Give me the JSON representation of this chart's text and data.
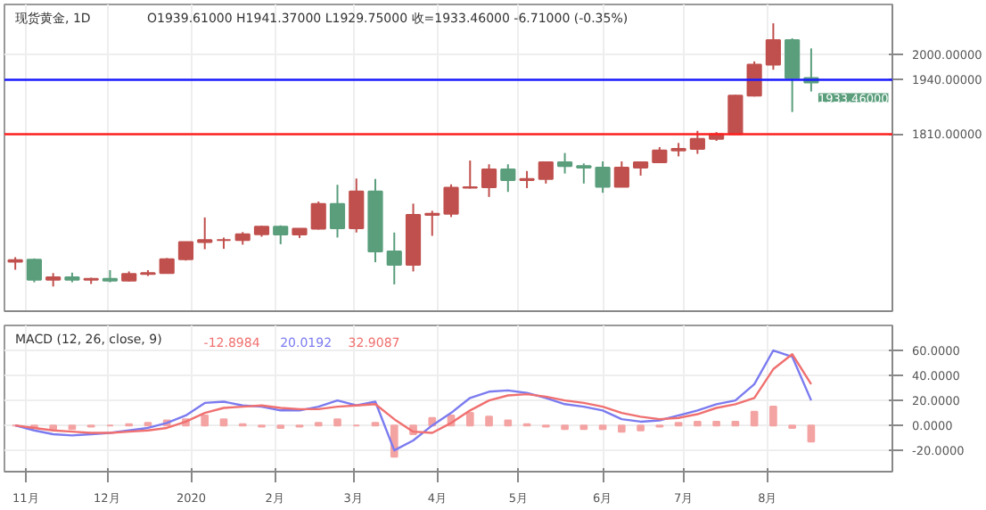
{
  "chart_data": [
    {
      "type": "candlestick",
      "title": "现货黄金, 1D",
      "subtitle": "O1939.61000 H1941.37000 L1929.75000 收=1933.46000 -6.71000 (-0.35%)",
      "x": [
        "2019-10-28",
        "2019-11-04",
        "2019-11-11",
        "2019-11-18",
        "2019-11-25",
        "2019-12-02",
        "2019-12-09",
        "2019-12-16",
        "2019-12-23",
        "2019-12-30",
        "2020-01-06",
        "2020-01-13",
        "2020-01-20",
        "2020-01-27",
        "2020-02-03",
        "2020-02-10",
        "2020-02-17",
        "2020-02-24",
        "2020-03-02",
        "2020-03-09",
        "2020-03-16",
        "2020-03-23",
        "2020-03-30",
        "2020-04-06",
        "2020-04-13",
        "2020-04-20",
        "2020-04-27",
        "2020-05-04",
        "2020-05-11",
        "2020-05-18",
        "2020-05-25",
        "2020-06-01",
        "2020-06-08",
        "2020-06-15",
        "2020-06-22",
        "2020-06-29",
        "2020-07-06",
        "2020-07-13",
        "2020-07-20",
        "2020-07-27",
        "2020-08-03",
        "2020-08-10",
        "2020-08-17"
      ],
      "ohlc": [
        [
          1505,
          1516,
          1486,
          1509
        ],
        [
          1510,
          1513,
          1456,
          1462
        ],
        [
          1462,
          1478,
          1446,
          1468
        ],
        [
          1468,
          1479,
          1456,
          1462
        ],
        [
          1462,
          1467,
          1452,
          1464
        ],
        [
          1464,
          1485,
          1456,
          1460
        ],
        [
          1460,
          1482,
          1458,
          1476
        ],
        [
          1476,
          1485,
          1471,
          1478
        ],
        [
          1478,
          1514,
          1477,
          1511
        ],
        [
          1511,
          1553,
          1508,
          1552
        ],
        [
          1552,
          1611,
          1535,
          1557
        ],
        [
          1557,
          1563,
          1536,
          1557
        ],
        [
          1557,
          1576,
          1546,
          1571
        ],
        [
          1571,
          1591,
          1565,
          1589
        ],
        [
          1589,
          1592,
          1547,
          1570
        ],
        [
          1570,
          1585,
          1562,
          1584
        ],
        [
          1584,
          1649,
          1582,
          1643
        ],
        [
          1643,
          1689,
          1563,
          1585
        ],
        [
          1585,
          1704,
          1575,
          1673
        ],
        [
          1673,
          1703,
          1504,
          1530
        ],
        [
          1530,
          1575,
          1451,
          1498
        ],
        [
          1498,
          1644,
          1482,
          1617
        ],
        [
          1617,
          1627,
          1567,
          1620
        ],
        [
          1620,
          1690,
          1612,
          1682
        ],
        [
          1682,
          1747,
          1680,
          1683
        ],
        [
          1683,
          1738,
          1660,
          1726
        ],
        [
          1726,
          1738,
          1672,
          1700
        ],
        [
          1700,
          1722,
          1681,
          1703
        ],
        [
          1703,
          1745,
          1692,
          1743
        ],
        [
          1743,
          1765,
          1716,
          1734
        ],
        [
          1734,
          1740,
          1692,
          1730
        ],
        [
          1730,
          1745,
          1670,
          1684
        ],
        [
          1684,
          1745,
          1684,
          1730
        ],
        [
          1730,
          1745,
          1711,
          1743
        ],
        [
          1743,
          1779,
          1741,
          1771
        ],
        [
          1771,
          1789,
          1757,
          1775
        ],
        [
          1775,
          1818,
          1763,
          1799
        ],
        [
          1799,
          1815,
          1794,
          1810
        ],
        [
          1810,
          1904,
          1810,
          1902
        ],
        [
          1902,
          1984,
          1900,
          1976
        ],
        [
          1976,
          2075,
          1964,
          2035
        ],
        [
          2035,
          2039,
          1863,
          1944
        ],
        [
          1944,
          2015,
          1912,
          1933.46
        ]
      ],
      "colors": [
        "#c0504d",
        "#5a9e7c",
        "#c0504d",
        "#5a9e7c",
        "#c0504d",
        "#5a9e7c",
        "#c0504d",
        "#c0504d",
        "#c0504d",
        "#c0504d",
        "#c0504d",
        "#c0504d",
        "#c0504d",
        "#c0504d",
        "#5a9e7c",
        "#c0504d",
        "#c0504d",
        "#5a9e7c",
        "#c0504d",
        "#5a9e7c",
        "#5a9e7c",
        "#c0504d",
        "#c0504d",
        "#c0504d",
        "#c0504d",
        "#c0504d",
        "#5a9e7c",
        "#c0504d",
        "#c0504d",
        "#5a9e7c",
        "#5a9e7c",
        "#5a9e7c",
        "#c0504d",
        "#c0504d",
        "#c0504d",
        "#c0504d",
        "#c0504d",
        "#c0504d",
        "#c0504d",
        "#c0504d",
        "#c0504d",
        "#5a9e7c",
        "#5a9e7c"
      ],
      "xlim": [
        "2019-10-24",
        "2020-09-16"
      ],
      "ylim": [
        1387,
        2120
      ],
      "xticks": [
        {
          "value": "2019-11-01",
          "label": null
        },
        {
          "value": "2019-12-01",
          "label": null
        },
        {
          "value": "2020-01-01",
          "label": null
        },
        {
          "value": "2020-02-01",
          "label": null
        },
        {
          "value": "2020-03-01",
          "label": null
        },
        {
          "value": "2020-04-01",
          "label": null
        },
        {
          "value": "2020-05-01",
          "label": null
        },
        {
          "value": "2020-06-01",
          "label": null
        },
        {
          "value": "2020-07-01",
          "label": null
        },
        {
          "value": "2020-08-01",
          "label": null
        }
      ],
      "yticks": [
        {
          "value": 1810,
          "label": "1810.00000"
        },
        {
          "value": 1940,
          "label": "1940.00000"
        },
        {
          "value": 2000,
          "label": "2000.00000"
        }
      ],
      "ref_lines": [
        {
          "axis": "y",
          "value": 1940,
          "color": "#1a1aff"
        },
        {
          "axis": "y",
          "value": 1810,
          "color": "#ff2020"
        }
      ],
      "annotations": [
        {
          "text": "1933.46000",
          "x": "2020-08-17",
          "y": 1933.46
        }
      ],
      "tick_labels": "y",
      "grid": true
    },
    {
      "type": "line",
      "title": "MACD (12, 26, close, 9)",
      "annotations": [
        "-12.8984",
        "20.0192",
        "32.9087"
      ],
      "x": [
        "2019-10-28",
        "2019-11-04",
        "2019-11-11",
        "2019-11-18",
        "2019-11-25",
        "2019-12-02",
        "2019-12-09",
        "2019-12-16",
        "2019-12-23",
        "2019-12-30",
        "2020-01-06",
        "2020-01-13",
        "2020-01-20",
        "2020-01-27",
        "2020-02-03",
        "2020-02-10",
        "2020-02-17",
        "2020-02-24",
        "2020-03-02",
        "2020-03-09",
        "2020-03-16",
        "2020-03-23",
        "2020-03-30",
        "2020-04-06",
        "2020-04-13",
        "2020-04-20",
        "2020-04-27",
        "2020-05-04",
        "2020-05-11",
        "2020-05-18",
        "2020-05-25",
        "2020-06-01",
        "2020-06-08",
        "2020-06-15",
        "2020-06-22",
        "2020-06-29",
        "2020-07-06",
        "2020-07-13",
        "2020-07-20",
        "2020-07-27",
        "2020-08-03",
        "2020-08-10",
        "2020-08-17"
      ],
      "series": [
        {
          "type": "bar",
          "color": "#f4a3a3",
          "values": [
            0,
            -2,
            -3,
            -3,
            -1,
            0,
            1,
            2,
            4,
            5,
            8,
            5,
            1,
            -1,
            -2,
            -1,
            2,
            5,
            0,
            2,
            -25,
            -7,
            6,
            8,
            10,
            7,
            4,
            1,
            -1,
            -3,
            -3,
            -3,
            -5,
            -4,
            -1,
            2,
            3,
            3,
            3,
            11,
            15,
            -2,
            -13
          ]
        },
        {
          "type": "line",
          "color": "#7b7bf0",
          "values": [
            0,
            -4,
            -7,
            -8,
            -7,
            -6,
            -4,
            -2,
            2,
            8,
            18,
            19,
            16,
            15,
            12,
            12,
            15,
            20,
            16,
            19,
            -20,
            -12,
            0,
            10,
            22,
            27,
            28,
            26,
            22,
            17,
            15,
            12,
            5,
            3,
            4,
            8,
            12,
            17,
            20,
            33,
            60,
            55,
            20
          ]
        },
        {
          "type": "line",
          "color": "#f07070",
          "values": [
            0,
            -2,
            -4,
            -5,
            -6,
            -6,
            -5,
            -4,
            -2,
            3,
            10,
            14,
            15,
            16,
            14,
            13,
            13,
            15,
            16,
            17,
            5,
            -5,
            -6,
            2,
            12,
            20,
            24,
            25,
            23,
            20,
            18,
            15,
            10,
            7,
            5,
            6,
            9,
            14,
            17,
            22,
            45,
            57,
            33
          ]
        }
      ],
      "xlim": [
        "2019-10-24",
        "2020-09-16"
      ],
      "ylim": [
        -37,
        80
      ],
      "xticks": [
        {
          "value": "2019-11-01",
          "label": "11月"
        },
        {
          "value": "2019-12-01",
          "label": "12月"
        },
        {
          "value": "2020-01-01",
          "label": "2020"
        },
        {
          "value": "2020-02-01",
          "label": "2月"
        },
        {
          "value": "2020-03-01",
          "label": "3月"
        },
        {
          "value": "2020-04-01",
          "label": "4月"
        },
        {
          "value": "2020-05-01",
          "label": "5月"
        },
        {
          "value": "2020-06-01",
          "label": "6月"
        },
        {
          "value": "2020-07-01",
          "label": "7月"
        },
        {
          "value": "2020-08-01",
          "label": "8月"
        }
      ],
      "yticks": [
        {
          "value": 60,
          "label": "60.0000"
        },
        {
          "value": 40,
          "label": "40.0000"
        },
        {
          "value": 20,
          "label": "20.0000"
        },
        {
          "value": 0,
          "label": "0.0000"
        },
        {
          "value": -20,
          "label": "-20.0000"
        }
      ],
      "grid": true
    }
  ]
}
